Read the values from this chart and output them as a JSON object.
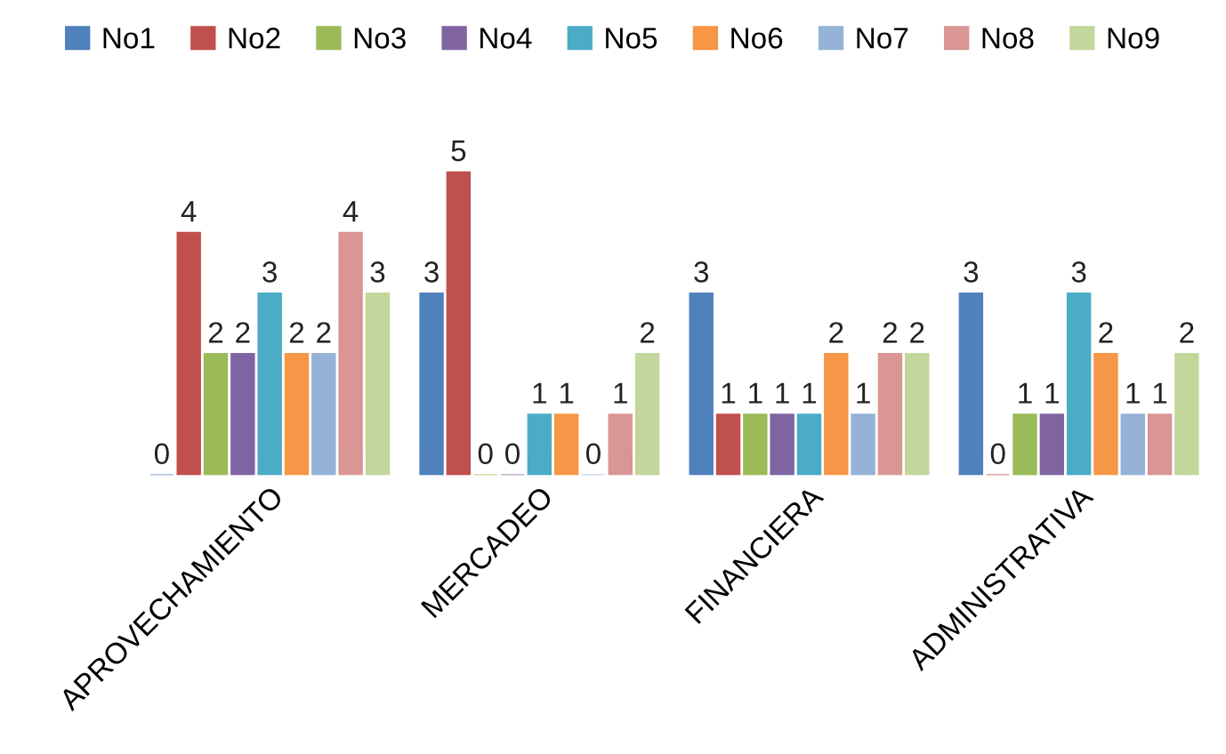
{
  "chart_data": {
    "type": "bar",
    "categories": [
      "APROVECHAMIENTO",
      "MERCADEO",
      "FINANCIERA",
      "ADMINISTRATIVA"
    ],
    "series": [
      {
        "name": "No1",
        "color": "#4f81bd",
        "values": [
          0,
          3,
          3,
          3
        ]
      },
      {
        "name": "No2",
        "color": "#c0504d",
        "values": [
          4,
          5,
          1,
          0
        ]
      },
      {
        "name": "No3",
        "color": "#9bbb59",
        "values": [
          2,
          0,
          1,
          1
        ]
      },
      {
        "name": "No4",
        "color": "#8064a2",
        "values": [
          2,
          0,
          1,
          1
        ]
      },
      {
        "name": "No5",
        "color": "#4bacc6",
        "values": [
          3,
          1,
          1,
          3
        ]
      },
      {
        "name": "No6",
        "color": "#f79646",
        "values": [
          2,
          1,
          2,
          2
        ]
      },
      {
        "name": "No7",
        "color": "#95b3d7",
        "values": [
          2,
          0,
          1,
          1
        ]
      },
      {
        "name": "No8",
        "color": "#d99694",
        "values": [
          4,
          1,
          2,
          1
        ]
      },
      {
        "name": "No9",
        "color": "#c3d69b",
        "values": [
          3,
          2,
          2,
          2
        ]
      }
    ],
    "data_labels": true,
    "legend": "top",
    "grid": false
  }
}
